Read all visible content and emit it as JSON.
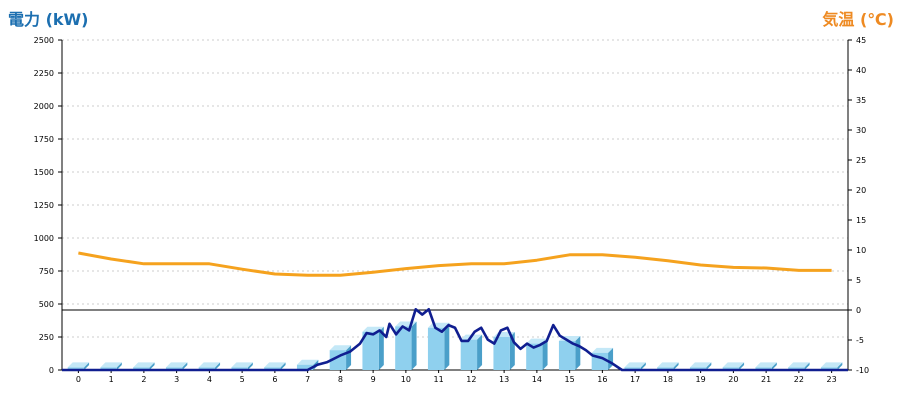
{
  "chart_data": {
    "type": "bar+line",
    "left_axis": {
      "label": "電力 (kW)",
      "color": "#1c6fb0",
      "min": 0,
      "max": 2500,
      "ticks": [
        "0",
        "250",
        "500",
        "750",
        "1000",
        "1250",
        "1500",
        "1750",
        "2000",
        "2250",
        "2500"
      ]
    },
    "right_axis": {
      "label": "気温 (℃)",
      "color": "#ee8a22",
      "min": -10,
      "max": 45,
      "ticks": [
        "-10",
        "-5",
        "0",
        "5",
        "10",
        "15",
        "20",
        "25",
        "30",
        "35",
        "40",
        "45"
      ]
    },
    "hours": [
      "0",
      "1",
      "2",
      "3",
      "4",
      "5",
      "6",
      "7",
      "8",
      "9",
      "10",
      "11",
      "12",
      "13",
      "14",
      "15",
      "16",
      "17",
      "18",
      "19",
      "20",
      "21",
      "22",
      "23"
    ],
    "power_bars": [
      20,
      20,
      20,
      20,
      20,
      20,
      20,
      40,
      150,
      290,
      330,
      320,
      230,
      250,
      200,
      220,
      130,
      20,
      20,
      20,
      20,
      20,
      20,
      20
    ],
    "power_line": [
      [
        7.0,
        0
      ],
      [
        7.3,
        40
      ],
      [
        7.6,
        60
      ],
      [
        8.0,
        110
      ],
      [
        8.3,
        140
      ],
      [
        8.6,
        200
      ],
      [
        8.8,
        280
      ],
      [
        9.0,
        270
      ],
      [
        9.2,
        300
      ],
      [
        9.4,
        250
      ],
      [
        9.5,
        350
      ],
      [
        9.7,
        270
      ],
      [
        9.9,
        330
      ],
      [
        10.1,
        300
      ],
      [
        10.3,
        460
      ],
      [
        10.5,
        420
      ],
      [
        10.7,
        460
      ],
      [
        10.9,
        320
      ],
      [
        11.1,
        290
      ],
      [
        11.3,
        340
      ],
      [
        11.5,
        320
      ],
      [
        11.7,
        220
      ],
      [
        11.9,
        220
      ],
      [
        12.1,
        290
      ],
      [
        12.3,
        320
      ],
      [
        12.5,
        230
      ],
      [
        12.7,
        200
      ],
      [
        12.9,
        300
      ],
      [
        13.1,
        320
      ],
      [
        13.3,
        210
      ],
      [
        13.5,
        160
      ],
      [
        13.7,
        200
      ],
      [
        13.9,
        170
      ],
      [
        14.1,
        190
      ],
      [
        14.3,
        220
      ],
      [
        14.5,
        340
      ],
      [
        14.7,
        260
      ],
      [
        14.9,
        230
      ],
      [
        15.1,
        200
      ],
      [
        15.3,
        180
      ],
      [
        15.5,
        150
      ],
      [
        15.7,
        110
      ],
      [
        16.0,
        90
      ],
      [
        16.3,
        50
      ],
      [
        16.6,
        0
      ]
    ],
    "temperature": [
      9.5,
      8.5,
      7.7,
      7.7,
      7.7,
      6.8,
      6.0,
      5.8,
      5.8,
      6.3,
      6.9,
      7.4,
      7.7,
      7.7,
      8.3,
      9.2,
      9.2,
      8.8,
      8.2,
      7.5,
      7.1,
      7.0,
      6.6,
      6.6
    ],
    "colors": {
      "bar_face": "#8fd0ee",
      "bar_side": "#4a9fc9",
      "bar_top": "#c4e8f7",
      "line": "#101e90",
      "temp": "#f5a21e",
      "grid": "#cccccc"
    }
  }
}
